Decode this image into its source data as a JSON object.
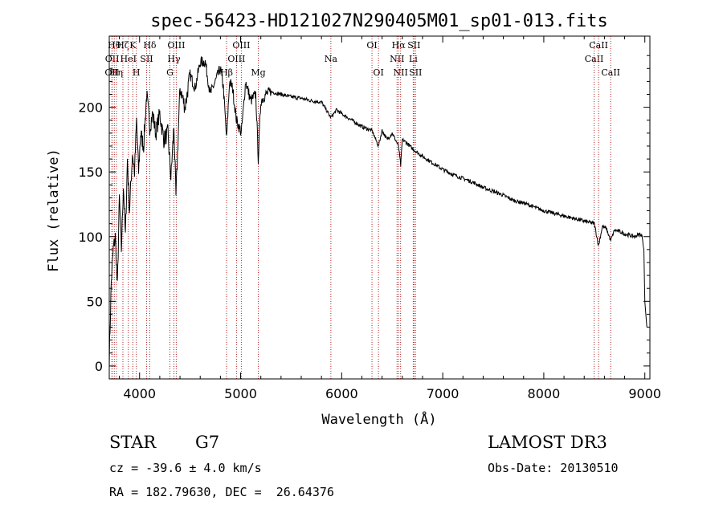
{
  "chart_data": {
    "type": "line",
    "title": "spec-56423-HD121027N290405M01_sp01-013.fits",
    "xlabel": "Wavelength (Å)",
    "ylabel": "Flux (relative)",
    "xlim": [
      3700,
      9050
    ],
    "ylim": [
      -10,
      255
    ],
    "xticks": [
      4000,
      5000,
      6000,
      7000,
      8000,
      9000
    ],
    "yticks": [
      0,
      50,
      100,
      150,
      200
    ],
    "grid": false,
    "series": [
      {
        "name": "flux",
        "color": "#000000",
        "x": [
          3700,
          3720,
          3740,
          3760,
          3780,
          3800,
          3820,
          3840,
          3860,
          3880,
          3900,
          3930,
          3950,
          3970,
          3990,
          4010,
          4040,
          4070,
          4101,
          4130,
          4160,
          4200,
          4240,
          4280,
          4310,
          4340,
          4360,
          4400,
          4450,
          4500,
          4550,
          4600,
          4650,
          4700,
          4750,
          4800,
          4830,
          4861,
          4890,
          4920,
          4959,
          5007,
          5050,
          5100,
          5150,
          5175,
          5200,
          5250,
          5300,
          5400,
          5500,
          5600,
          5700,
          5800,
          5893,
          5950,
          6000,
          6100,
          6200,
          6300,
          6364,
          6400,
          6450,
          6500,
          6563,
          6584,
          6600,
          6650,
          6700,
          6750,
          6800,
          6900,
          7000,
          7100,
          7200,
          7300,
          7400,
          7500,
          7600,
          7700,
          7800,
          7900,
          8000,
          8100,
          8200,
          8300,
          8400,
          8500,
          8542,
          8580,
          8620,
          8662,
          8700,
          8750,
          8800,
          8850,
          8900,
          8950,
          8975,
          8990,
          9000,
          9020
        ],
        "values": [
          5,
          65,
          90,
          100,
          60,
          130,
          90,
          140,
          100,
          160,
          120,
          165,
          150,
          190,
          150,
          180,
          170,
          210,
          185,
          195,
          180,
          195,
          175,
          180,
          145,
          185,
          130,
          215,
          200,
          225,
          215,
          235,
          235,
          210,
          220,
          230,
          215,
          175,
          220,
          215,
          190,
          180,
          220,
          205,
          210,
          160,
          205,
          210,
          212,
          210,
          208,
          207,
          205,
          204,
          192,
          198,
          195,
          190,
          185,
          182,
          170,
          182,
          175,
          180,
          170,
          155,
          175,
          172,
          168,
          165,
          162,
          157,
          152,
          148,
          145,
          142,
          138,
          135,
          132,
          128,
          126,
          123,
          120,
          118,
          116,
          114,
          112,
          110,
          93,
          108,
          106,
          97,
          105,
          104,
          102,
          101,
          100,
          102,
          100,
          90,
          50,
          30
        ]
      }
    ],
    "lines": [
      {
        "x": 3726,
        "labels": [
          "OII"
        ],
        "row": 2
      },
      {
        "x": 3729,
        "labels": [
          "OII"
        ],
        "row": 1
      },
      {
        "x": 3750,
        "labels": [
          "Hθ"
        ],
        "row": 0
      },
      {
        "x": 3771,
        "labels": [
          "Hη"
        ],
        "row": 2
      },
      {
        "x": 3835,
        "labels": [
          "Hζ"
        ],
        "row": 0
      },
      {
        "x": 3889,
        "labels": [
          "HeI"
        ],
        "row": 1
      },
      {
        "x": 3933,
        "labels": [
          "K"
        ],
        "row": 0
      },
      {
        "x": 3968,
        "labels": [
          "H"
        ],
        "row": 2
      },
      {
        "x": 4070,
        "labels": [
          "SII"
        ],
        "row": 1
      },
      {
        "x": 4101,
        "labels": [
          "Hδ"
        ],
        "row": 0
      },
      {
        "x": 4300,
        "labels": [
          "G"
        ],
        "row": 2
      },
      {
        "x": 4340,
        "labels": [
          "Hγ"
        ],
        "row": 1
      },
      {
        "x": 4363,
        "labels": [
          "OIII"
        ],
        "row": 0
      },
      {
        "x": 4861,
        "labels": [
          "Hβ"
        ],
        "row": 2
      },
      {
        "x": 4959,
        "labels": [
          "OIII"
        ],
        "row": 1
      },
      {
        "x": 5007,
        "labels": [
          "OIII"
        ],
        "row": 0
      },
      {
        "x": 5175,
        "labels": [
          "Mg"
        ],
        "row": 2
      },
      {
        "x": 5893,
        "labels": [
          "Na"
        ],
        "row": 1
      },
      {
        "x": 6300,
        "labels": [
          "OI"
        ],
        "row": 0
      },
      {
        "x": 6364,
        "labels": [
          "OI"
        ],
        "row": 2
      },
      {
        "x": 6548,
        "labels": [
          "NII"
        ],
        "row": 1
      },
      {
        "x": 6563,
        "labels": [
          "Hα"
        ],
        "row": 0
      },
      {
        "x": 6583,
        "labels": [
          "NII"
        ],
        "row": 2
      },
      {
        "x": 6708,
        "labels": [
          "Li"
        ],
        "row": 1
      },
      {
        "x": 6716,
        "labels": [
          "SII"
        ],
        "row": 0
      },
      {
        "x": 6731,
        "labels": [
          "SII"
        ],
        "row": 2
      },
      {
        "x": 8498,
        "labels": [
          "CaII"
        ],
        "row": 1
      },
      {
        "x": 8542,
        "labels": [
          "CaII"
        ],
        "row": 0
      },
      {
        "x": 8662,
        "labels": [
          "CaII"
        ],
        "row": 2
      }
    ]
  },
  "info": {
    "object_class": "STAR",
    "subclass": "G7",
    "survey": "LAMOST DR3",
    "cz": "cz = -39.6 ± 4.0 km/s",
    "obs_date": "Obs-Date: 20130510",
    "coords": "RA = 182.79630, DEC =  26.64376"
  },
  "colors": {
    "line_marker": "#b22222",
    "spectrum": "#000000",
    "axes": "#000000"
  }
}
